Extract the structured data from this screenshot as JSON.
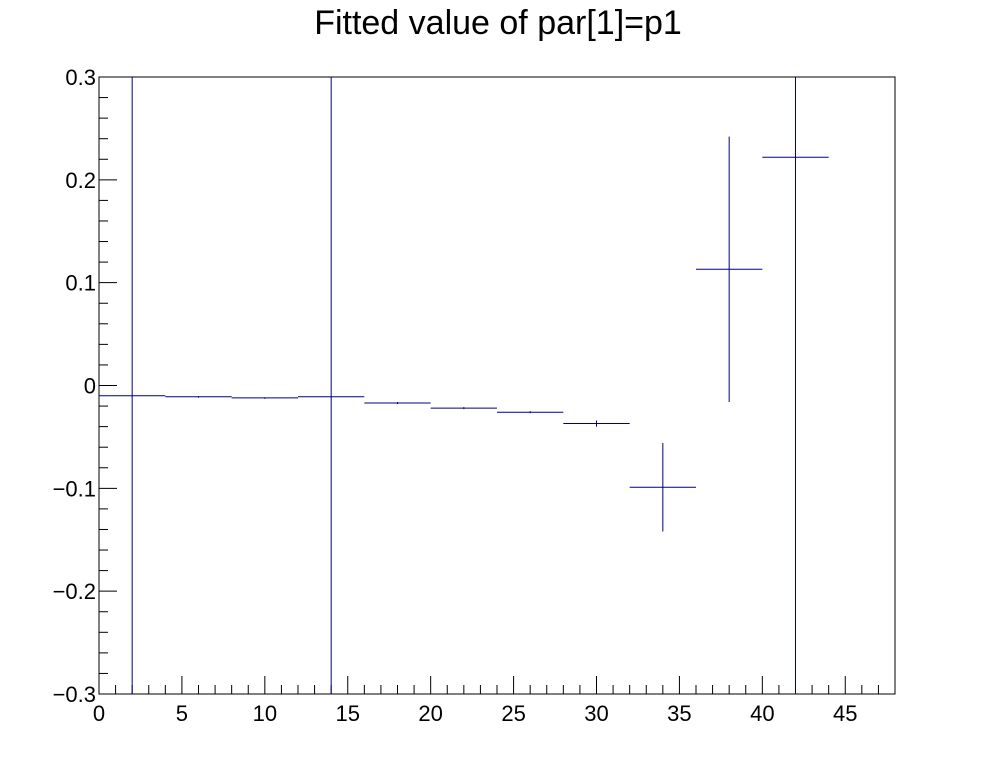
{
  "chart_data": {
    "type": "scatter",
    "title": "Fitted value of par[1]=p1",
    "xlabel": "",
    "ylabel": "",
    "xlim": [
      0,
      48
    ],
    "ylim": [
      -0.3,
      0.3
    ],
    "x_ticks": [
      0,
      5,
      10,
      15,
      20,
      25,
      30,
      35,
      40,
      45
    ],
    "x_tick_labels": [
      "0",
      "5",
      "10",
      "15",
      "20",
      "25",
      "30",
      "35",
      "40",
      "45"
    ],
    "y_ticks": [
      -0.3,
      -0.2,
      -0.1,
      0,
      0.1,
      0.2,
      0.3
    ],
    "y_tick_labels": [
      "−0.3",
      "−0.2",
      "−0.1",
      "0",
      "0.1",
      "0.2",
      "0.3"
    ],
    "grid": false,
    "legend": "none",
    "series_color": "#000080",
    "points": [
      {
        "x": 2,
        "xerr": 2,
        "y": -0.01,
        "yerr": 5
      },
      {
        "x": 6,
        "xerr": 2,
        "y": -0.011,
        "yerr": 0.0005
      },
      {
        "x": 10,
        "xerr": 2,
        "y": -0.012,
        "yerr": 0.0005
      },
      {
        "x": 14,
        "xerr": 2,
        "y": -0.011,
        "yerr": 5
      },
      {
        "x": 18,
        "xerr": 2,
        "y": -0.017,
        "yerr": 0.001
      },
      {
        "x": 22,
        "xerr": 2,
        "y": -0.022,
        "yerr": 0.001
      },
      {
        "x": 26,
        "xerr": 2,
        "y": -0.026,
        "yerr": 0.001
      },
      {
        "x": 30,
        "xerr": 2,
        "y": -0.037,
        "yerr": 0.003
      },
      {
        "x": 34,
        "xerr": 2,
        "y": -0.099,
        "yerr": 0.043
      },
      {
        "x": 38,
        "xerr": 2,
        "y": 0.113,
        "yerr": 0.129
      },
      {
        "x": 42,
        "xerr": 2,
        "y": 0.222,
        "yerr": 5
      }
    ]
  }
}
